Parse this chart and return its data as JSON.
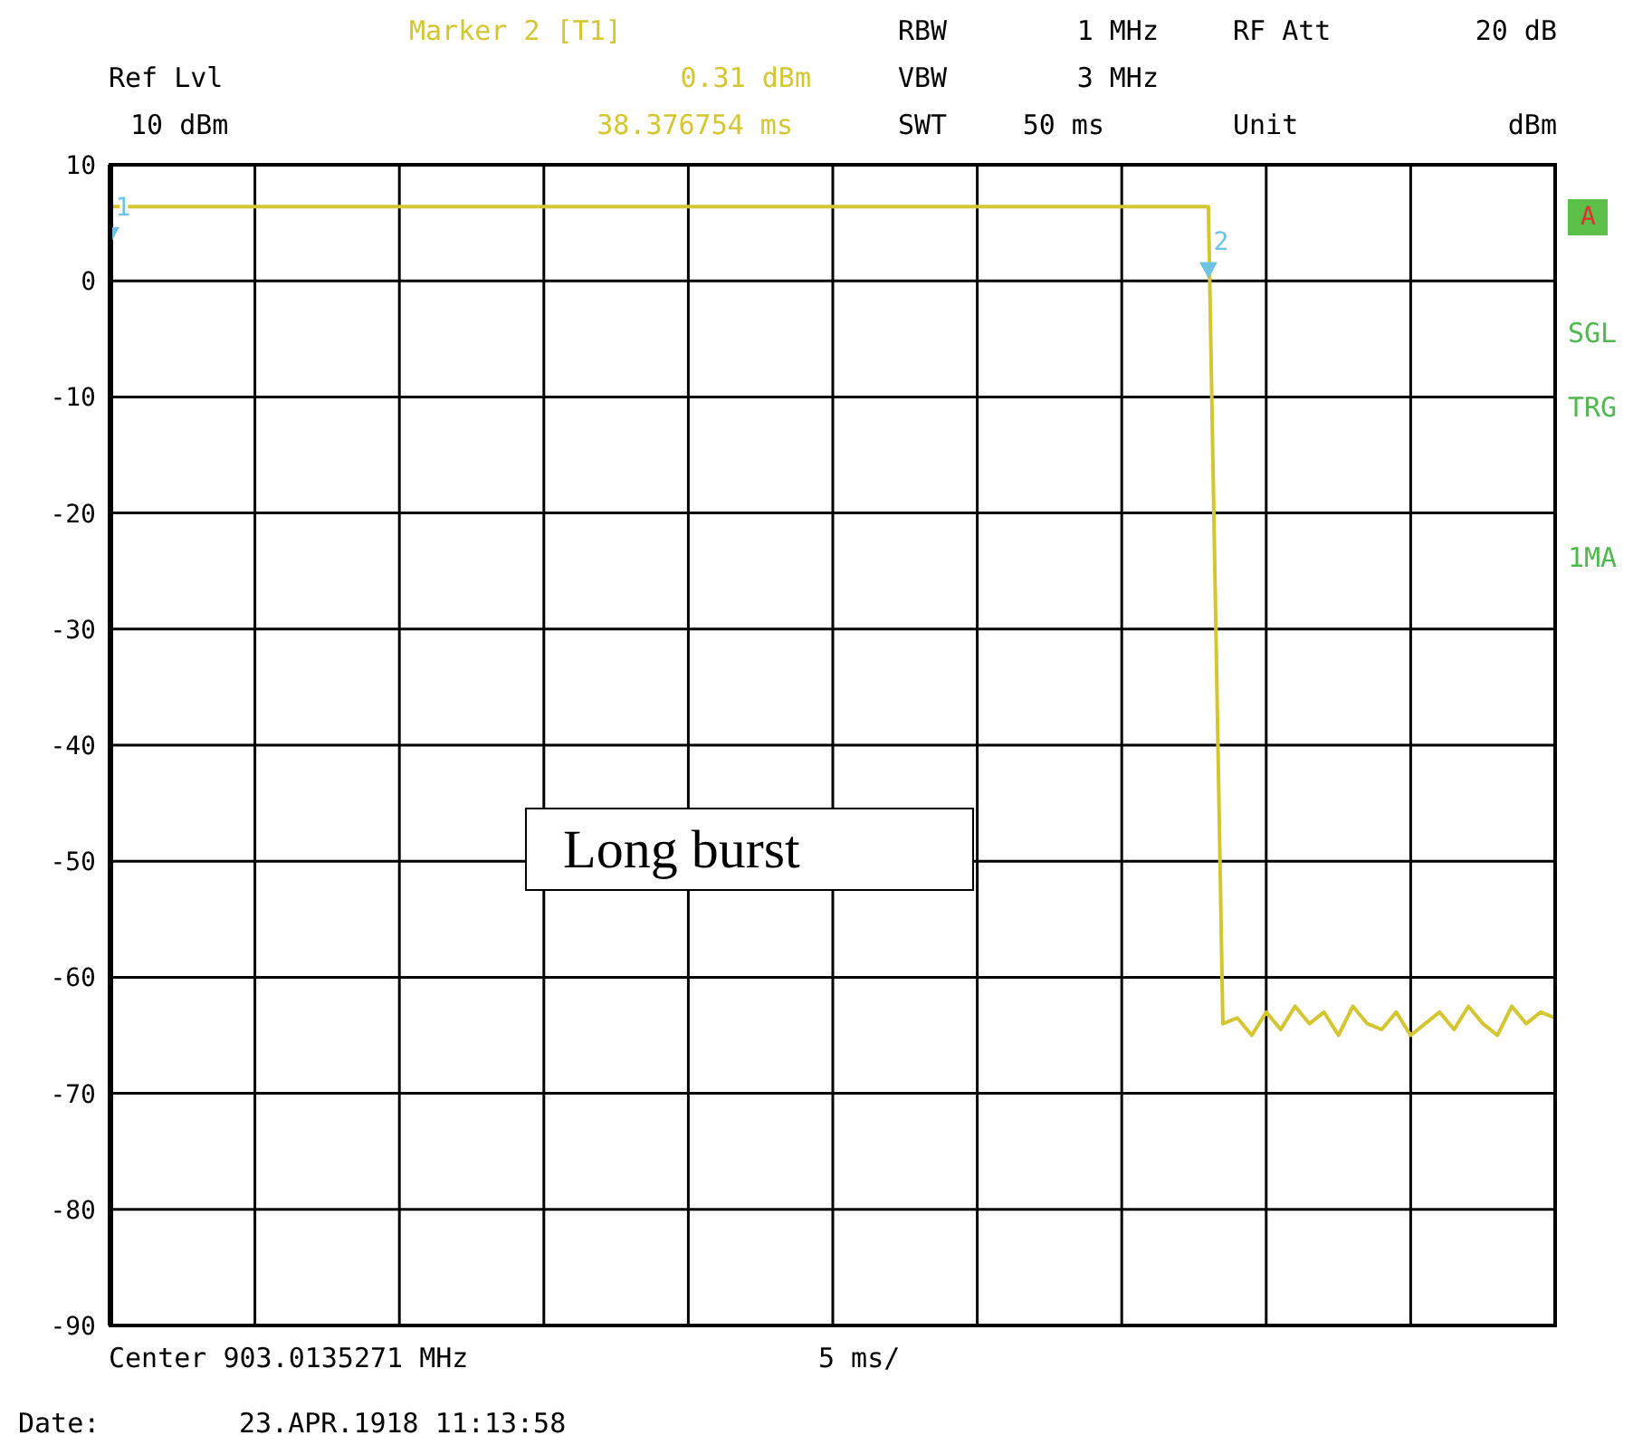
{
  "chart_data": {
    "type": "line",
    "annotations": [
      "Marker 2 [T1]",
      "0.31 dBm",
      "38.376754 ms",
      "Ref Lvl",
      "10 dBm",
      "RBW",
      "1 MHz",
      "VBW",
      "3 MHz",
      "SWT",
      "50 ms",
      "RF Att",
      "20 dB",
      "Unit",
      "dBm",
      "A",
      "SGL",
      "TRG",
      "1MA",
      "Long burst",
      "Center 903.0135271 MHz",
      "5 ms/",
      "Date:",
      "23.APR.1918  11:13:58"
    ],
    "categories": [
      null,
      null,
      null,
      null,
      null,
      null,
      null,
      null,
      null,
      null,
      null,
      null,
      null,
      null,
      null,
      null,
      null,
      null,
      null,
      null,
      null,
      null,
      null,
      null,
      null,
      null,
      null,
      null,
      null,
      null,
      null,
      null,
      null,
      null,
      null,
      null,
      null,
      null,
      null,
      null,
      null,
      null,
      null,
      null,
      null,
      null,
      null,
      null,
      null,
      null,
      null,
      null,
      null,
      null,
      null,
      null,
      null,
      null,
      null,
      null,
      null,
      null,
      null,
      null,
      null,
      null,
      null,
      null,
      null,
      null,
      null,
      null,
      null,
      null,
      null,
      null,
      null,
      null,
      null,
      null,
      null,
      null,
      null,
      null,
      null,
      null,
      null,
      null,
      null,
      null,
      null,
      null,
      null,
      null,
      null,
      null,
      null,
      null,
      null,
      null,
      null
    ],
    "series": [
      {
        "color": "#d4c631",
        "values": [
          6.4,
          6.4,
          6.4,
          6.4,
          6.4,
          6.4,
          6.4,
          6.4,
          6.4,
          6.4,
          6.4,
          6.4,
          6.4,
          6.4,
          6.4,
          6.4,
          6.4,
          6.4,
          6.4,
          6.4,
          6.4,
          6.4,
          6.4,
          6.4,
          6.4,
          6.4,
          6.4,
          6.4,
          6.4,
          6.4,
          6.4,
          6.4,
          6.4,
          6.4,
          6.4,
          6.4,
          6.4,
          6.4,
          6.4,
          6.4,
          6.4,
          6.4,
          6.4,
          6.4,
          6.4,
          6.4,
          6.4,
          6.4,
          6.4,
          6.4,
          6.4,
          6.4,
          6.4,
          6.4,
          6.4,
          6.4,
          6.4,
          6.4,
          6.4,
          6.4,
          6.4,
          6.4,
          6.4,
          6.4,
          6.4,
          6.4,
          6.4,
          6.4,
          6.4,
          6.4,
          6.4,
          6.4,
          6.4,
          6.4,
          6.4,
          6.4,
          6.4,
          -64,
          -63.5,
          -65,
          -63,
          -64.5,
          -62.5,
          -64,
          -63,
          -65,
          -62.5,
          -64,
          -64.5,
          -63,
          -65,
          -64,
          -63,
          -64.5,
          -62.5,
          -64,
          -65,
          -62.5,
          -64,
          -63,
          -63.5
        ]
      },
      {
        "type": "scatter",
        "name": "1",
        "color": "#6ec3e4",
        "marker": "triangle",
        "values": [
          4,
          null,
          null,
          null,
          null,
          null,
          null,
          null,
          null,
          null,
          null,
          null,
          null,
          null,
          null,
          null,
          null,
          null,
          null,
          null,
          null,
          null,
          null,
          null,
          null,
          null,
          null,
          null,
          null,
          null,
          null,
          null,
          null,
          null,
          null,
          null,
          null,
          null,
          null,
          null,
          null,
          null,
          null,
          null,
          null,
          null,
          null,
          null,
          null,
          null,
          null,
          null,
          null,
          null,
          null,
          null,
          null,
          null,
          null,
          null,
          null,
          null,
          null,
          null,
          null,
          null,
          null,
          null,
          null,
          null,
          null,
          null,
          null,
          null,
          null,
          null,
          null,
          null,
          null,
          null,
          null,
          null,
          null,
          null,
          null,
          null,
          null,
          null,
          null,
          null,
          null,
          null,
          null,
          null,
          null,
          null,
          null,
          null,
          null,
          null,
          null
        ]
      },
      {
        "type": "scatter",
        "name": "2",
        "color": "#6ec3e4",
        "marker": "triangle",
        "values": [
          null,
          null,
          null,
          null,
          null,
          null,
          null,
          null,
          null,
          null,
          null,
          null,
          null,
          null,
          null,
          null,
          null,
          null,
          null,
          null,
          null,
          null,
          null,
          null,
          null,
          null,
          null,
          null,
          null,
          null,
          null,
          null,
          null,
          null,
          null,
          null,
          null,
          null,
          null,
          null,
          null,
          null,
          null,
          null,
          null,
          null,
          null,
          null,
          null,
          null,
          null,
          null,
          null,
          null,
          null,
          null,
          null,
          null,
          null,
          null,
          null,
          null,
          null,
          null,
          null,
          null,
          null,
          null,
          null,
          null,
          null,
          null,
          null,
          null,
          null,
          null,
          1,
          null,
          null,
          null,
          null,
          null,
          null,
          null,
          null,
          null,
          null,
          null,
          null,
          null,
          null,
          null,
          null,
          null,
          null,
          null,
          null,
          null,
          null,
          null,
          null
        ]
      }
    ],
    "ylim": [
      -90,
      10
    ],
    "yticks": [
      10,
      0,
      -10,
      -20,
      -30,
      -40,
      -50,
      -60,
      -70,
      -80,
      -90
    ],
    "grid": true
  }
}
